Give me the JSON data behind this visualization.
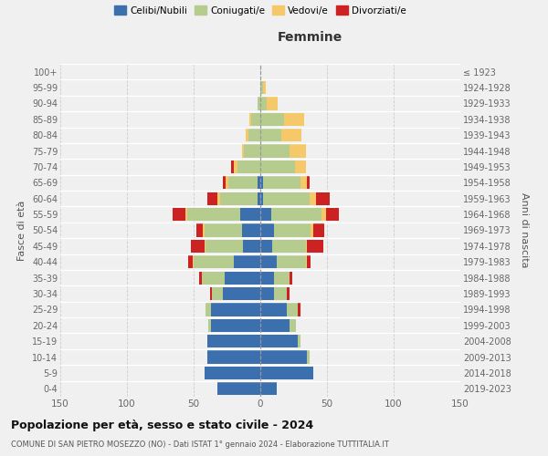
{
  "age_groups": [
    "0-4",
    "5-9",
    "10-14",
    "15-19",
    "20-24",
    "25-29",
    "30-34",
    "35-39",
    "40-44",
    "45-49",
    "50-54",
    "55-59",
    "60-64",
    "65-69",
    "70-74",
    "75-79",
    "80-84",
    "85-89",
    "90-94",
    "95-99",
    "100+"
  ],
  "birth_years": [
    "2019-2023",
    "2014-2018",
    "2009-2013",
    "2004-2008",
    "1999-2003",
    "1994-1998",
    "1989-1993",
    "1984-1988",
    "1979-1983",
    "1974-1978",
    "1969-1973",
    "1964-1968",
    "1959-1963",
    "1954-1958",
    "1949-1953",
    "1944-1948",
    "1939-1943",
    "1934-1938",
    "1929-1933",
    "1924-1928",
    "≤ 1923"
  ],
  "colors": {
    "celibi": "#3c6fad",
    "coniugati": "#b5cc8e",
    "vedovi": "#f5c96a",
    "divorziati": "#cc2222"
  },
  "males": {
    "celibi": [
      32,
      42,
      40,
      40,
      37,
      37,
      28,
      27,
      20,
      13,
      14,
      15,
      2,
      2,
      0,
      0,
      0,
      0,
      0,
      0,
      0
    ],
    "coniugati": [
      0,
      0,
      0,
      0,
      2,
      4,
      8,
      17,
      30,
      28,
      28,
      40,
      28,
      22,
      17,
      12,
      9,
      7,
      2,
      0,
      0
    ],
    "vedovi": [
      0,
      0,
      0,
      0,
      0,
      0,
      0,
      0,
      1,
      1,
      1,
      1,
      2,
      2,
      3,
      2,
      2,
      1,
      0,
      0,
      0
    ],
    "divorziati": [
      0,
      0,
      0,
      0,
      0,
      0,
      2,
      2,
      3,
      10,
      5,
      10,
      8,
      2,
      2,
      0,
      0,
      0,
      0,
      0,
      0
    ]
  },
  "females": {
    "celibi": [
      12,
      40,
      35,
      28,
      22,
      20,
      10,
      10,
      12,
      9,
      10,
      8,
      2,
      2,
      0,
      0,
      0,
      0,
      0,
      0,
      0
    ],
    "coniugati": [
      0,
      0,
      2,
      2,
      5,
      8,
      10,
      12,
      22,
      25,
      28,
      38,
      35,
      28,
      26,
      22,
      16,
      18,
      5,
      2,
      0
    ],
    "vedovi": [
      0,
      0,
      0,
      0,
      0,
      0,
      0,
      0,
      1,
      1,
      2,
      3,
      5,
      5,
      8,
      12,
      15,
      15,
      8,
      2,
      0
    ],
    "divorziati": [
      0,
      0,
      0,
      0,
      0,
      2,
      2,
      2,
      3,
      12,
      8,
      10,
      10,
      2,
      0,
      0,
      0,
      0,
      0,
      0,
      0
    ]
  },
  "title_main": "Popolazione per età, sesso e stato civile - 2024",
  "title_sub": "COMUNE DI SAN PIETRO MOSEZZO (NO) - Dati ISTAT 1° gennaio 2024 - Elaborazione TUTTITALIA.IT",
  "xlabel_right": "Femmine",
  "ylabel_left": "Fasce di età",
  "ylabel_right": "Anni di nascita",
  "xlim": 150,
  "legend_labels": [
    "Celibi/Nubili",
    "Coniugati/e",
    "Vedovi/e",
    "Divorziati/e"
  ],
  "background_color": "#f0f0f0"
}
